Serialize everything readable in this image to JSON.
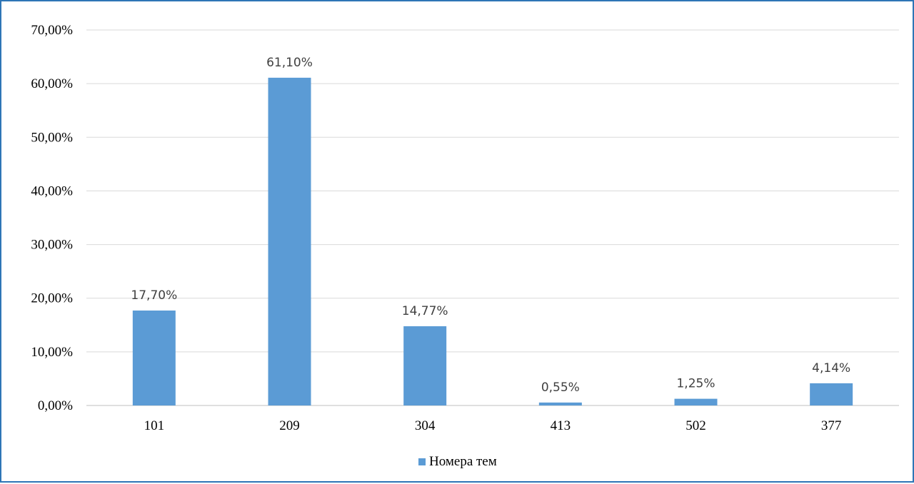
{
  "chart_data": {
    "type": "bar",
    "title": "",
    "xlabel": "",
    "ylabel": "",
    "categories": [
      "101",
      "209",
      "304",
      "413",
      "502",
      "377"
    ],
    "series": [
      {
        "name": "Номера тем",
        "values": [
          17.7,
          61.1,
          14.77,
          0.55,
          1.25,
          4.14
        ],
        "data_labels": [
          "17,70%",
          "61,10%",
          "14,77%",
          "0,55%",
          "1,25%",
          "4,14%"
        ],
        "color": "#5b9bd5"
      }
    ],
    "ylim": [
      0,
      70
    ],
    "yticks": [
      0,
      10,
      20,
      30,
      40,
      50,
      60,
      70
    ],
    "ytick_labels": [
      "0,00%",
      "10,00%",
      "20,00%",
      "30,00%",
      "40,00%",
      "50,00%",
      "60,00%",
      "70,00%"
    ],
    "grid": true,
    "legend_position": "bottom-center",
    "frame_color": "#2e75b6"
  }
}
